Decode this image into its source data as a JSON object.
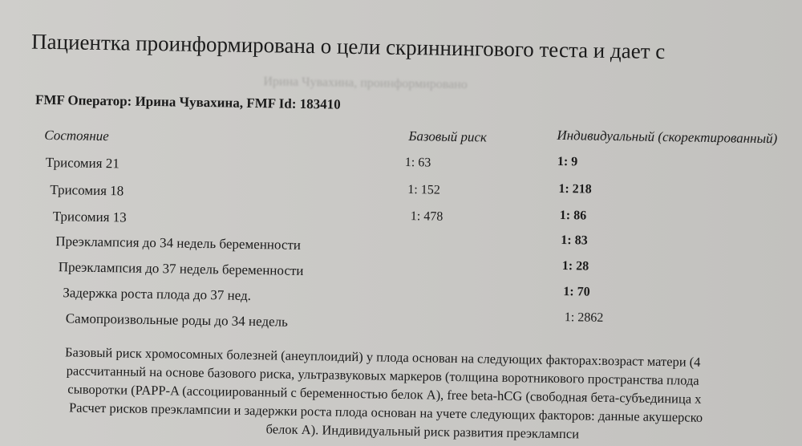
{
  "title": "Пациентка проинформирована о цели скриннингового теста и дает с",
  "operator": "FMF Оператор: Ирина Чувахина, FMF Id: 183410",
  "ghost_text": "Ирина Чувахина, проинформировано",
  "table": {
    "headers": {
      "condition": "Состояние",
      "base": "Базовый риск",
      "individual": "Индивидуальный (скоректированный)"
    },
    "rows": [
      {
        "condition": "Трисомия 21",
        "base": "1: 63",
        "individual": "1: 9"
      },
      {
        "condition": "Трисомия 18",
        "base": "1: 152",
        "individual": "1: 218"
      },
      {
        "condition": "Трисомия 13",
        "base": "1: 478",
        "individual": "1: 86"
      },
      {
        "condition": "Преэклампсия до 34 недель беременности",
        "base": "",
        "individual": "1: 83"
      },
      {
        "condition": "Преэклампсия до 37 недель беременности",
        "base": "",
        "individual": "1: 28"
      },
      {
        "condition": "Задержка роста плода до 37 нед.",
        "base": "",
        "individual": "1: 70"
      },
      {
        "condition": "Самопроизвольные роды до 34 недель",
        "base": "",
        "individual": "1: 2862"
      }
    ]
  },
  "paragraph": [
    "Базовый риск хромосомных болезней (анеуплоидий) у плода основан на следующих факторах:возраст матери (4",
    "рассчитанный на основе базового риска, ультразвуковых маркеров (толщина воротникового пространства плода",
    "сыворотки (PAPP-A (ассоциированный с беременностью белок А), free beta-hCG (свободная бета-субъединица х",
    "Расчет рисков преэклампсии и задержки роста плода основан на учете следующих факторов: данные акушерско",
    "белок А). Индивидуальный риск развития преэклампси"
  ]
}
